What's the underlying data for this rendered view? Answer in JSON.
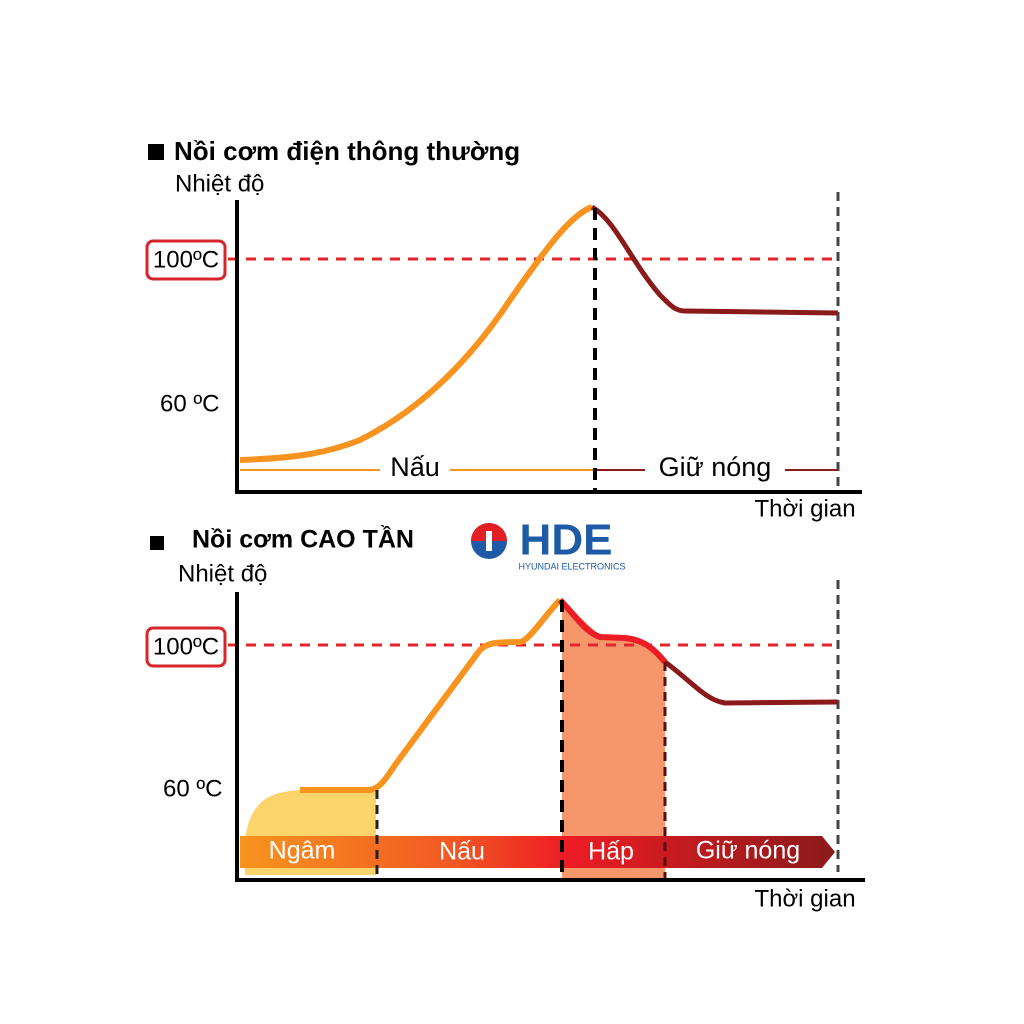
{
  "sections": [
    {
      "title": "Nồi cơm điện thông thường",
      "y_axis_label": "Nhiệt độ",
      "x_axis_label": "Thời gian",
      "levels": [
        "100ºC",
        "60 ºC"
      ],
      "phases": [
        "Nấu",
        "Giữ nóng"
      ]
    },
    {
      "title": "Nồi cơm CAO TẦN",
      "y_axis_label": "Nhiệt độ",
      "x_axis_label": "Thời gian",
      "levels": [
        "100ºC",
        "60 ºC"
      ],
      "phases": [
        "Ngâm",
        "Nấu",
        "Hấp",
        "Giữ nóng"
      ]
    }
  ],
  "logo": {
    "text": "HDE",
    "subtitle": "HYUNDAI ELECTRONICS"
  }
}
